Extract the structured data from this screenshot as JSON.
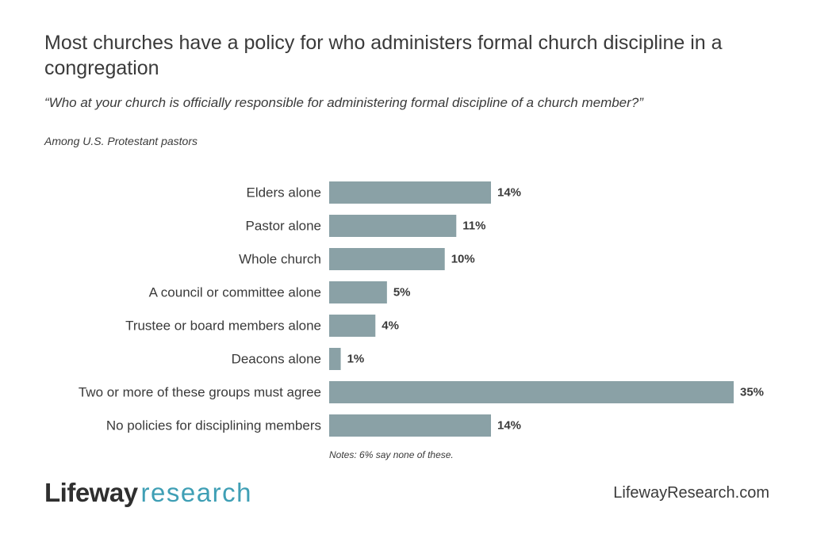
{
  "title": "Most churches have a policy for who administers formal church discipline in a congregation",
  "subtitle": "“Who at your church is officially responsible for administering formal discipline of a church member?”",
  "population": "Among U.S. Protestant pastors",
  "footnote": "Notes: 6% say none of these.",
  "logo": {
    "brand": "Lifeway",
    "product": "research"
  },
  "website": "LifewayResearch.com",
  "colors": {
    "bar": "#8aa1a6",
    "text": "#3a3a3a",
    "logo_accent": "#3f9fb5"
  },
  "chart_data": {
    "type": "bar",
    "orientation": "horizontal",
    "categories": [
      "Elders alone",
      "Pastor alone",
      "Whole church",
      "A council or committee alone",
      "Trustee or board members alone",
      "Deacons alone",
      "Two or more of these groups must agree",
      "No policies for disciplining members"
    ],
    "values": [
      14,
      11,
      10,
      5,
      4,
      1,
      35,
      14
    ],
    "value_labels": [
      "14%",
      "11%",
      "10%",
      "5%",
      "4%",
      "1%",
      "35%",
      "14%"
    ],
    "unit": "%",
    "xlim": [
      0,
      35
    ],
    "grid": false,
    "legend": "none"
  }
}
